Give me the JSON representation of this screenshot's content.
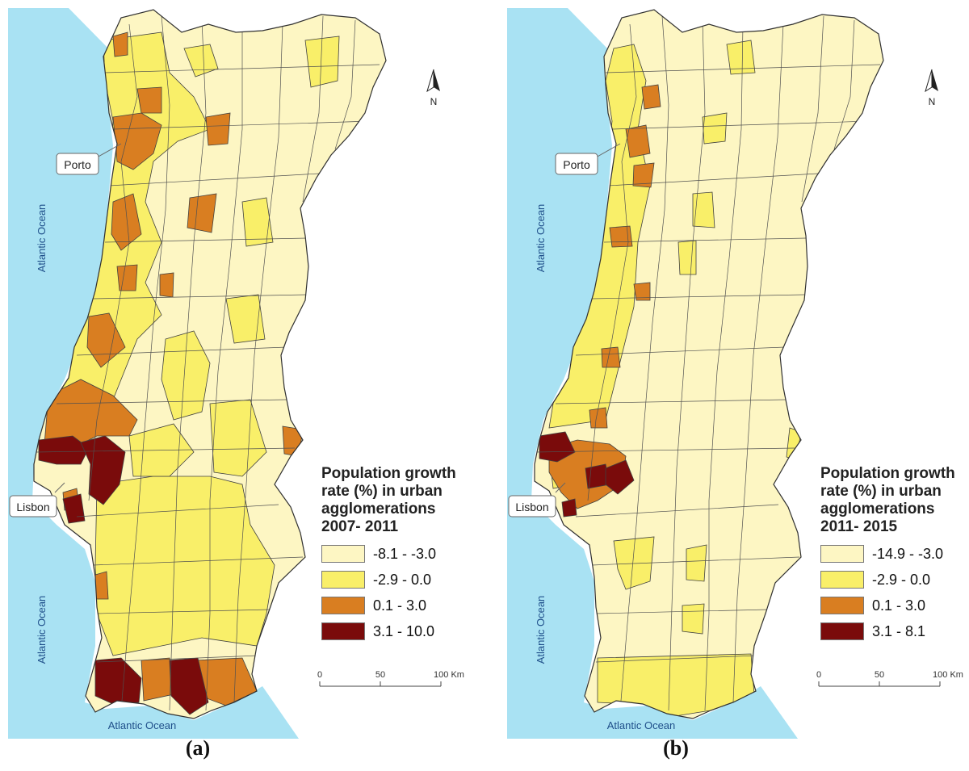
{
  "colors": {
    "ocean": "#a9e2f3",
    "class1": "#fdf6c3",
    "class2": "#f9ef69",
    "class3": "#d97e21",
    "class4": "#7a0b0b",
    "border": "#404040"
  },
  "panels": [
    {
      "sublabel": "(a)",
      "ocean_labels": [
        "Atlantic Ocean",
        "Atlantic Ocean",
        "Atlantic Ocean"
      ],
      "city_labels": {
        "porto": "Porto",
        "lisbon": "Lisbon"
      },
      "north_label": "N",
      "legend": {
        "title_lines": [
          "Population growth",
          "rate (%) in urban",
          "agglomerations",
          "2007- 2011"
        ],
        "classes": [
          "-8.1 - -3.0",
          "-2.9 - 0.0",
          "0.1 - 3.0",
          "3.1 - 10.0"
        ]
      },
      "scale": {
        "ticks": [
          "0",
          "50",
          "100 Km"
        ]
      }
    },
    {
      "sublabel": "(b)",
      "ocean_labels": [
        "Atlantic Ocean",
        "Atlantic Ocean",
        "Atlantic Ocean"
      ],
      "city_labels": {
        "porto": "Porto",
        "lisbon": "Lisbon"
      },
      "north_label": "N",
      "legend": {
        "title_lines": [
          "Population growth",
          "rate (%) in urban",
          "agglomerations",
          "2011- 2015"
        ],
        "classes": [
          "-14.9 - -3.0",
          "-2.9 - 0.0",
          "0.1 - 3.0",
          "3.1 - 8.1"
        ]
      },
      "scale": {
        "ticks": [
          "0",
          "50",
          "100 Km"
        ]
      }
    }
  ]
}
